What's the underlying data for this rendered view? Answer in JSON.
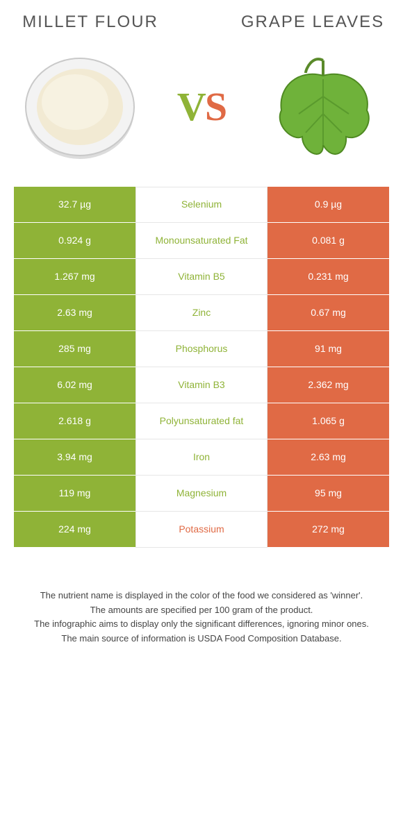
{
  "colors": {
    "left_bg": "#8fb337",
    "right_bg": "#e06a45",
    "mid_left_text": "#8fb337",
    "mid_right_text": "#e06a45",
    "page_bg": "#ffffff"
  },
  "header": {
    "left_title": "MILLET FLOUR",
    "right_title": "GRAPE LEAVES",
    "vs_v": "V",
    "vs_s": "S"
  },
  "table": {
    "rows": [
      {
        "left": "32.7 µg",
        "label": "Selenium",
        "right": "0.9 µg",
        "winner": "left"
      },
      {
        "left": "0.924 g",
        "label": "Monounsaturated Fat",
        "right": "0.081 g",
        "winner": "left"
      },
      {
        "left": "1.267 mg",
        "label": "Vitamin B5",
        "right": "0.231 mg",
        "winner": "left"
      },
      {
        "left": "2.63 mg",
        "label": "Zinc",
        "right": "0.67 mg",
        "winner": "left"
      },
      {
        "left": "285 mg",
        "label": "Phosphorus",
        "right": "91 mg",
        "winner": "left"
      },
      {
        "left": "6.02 mg",
        "label": "Vitamin B3",
        "right": "2.362 mg",
        "winner": "left"
      },
      {
        "left": "2.618 g",
        "label": "Polyunsaturated fat",
        "right": "1.065 g",
        "winner": "left"
      },
      {
        "left": "3.94 mg",
        "label": "Iron",
        "right": "2.63 mg",
        "winner": "left"
      },
      {
        "left": "119 mg",
        "label": "Magnesium",
        "right": "95 mg",
        "winner": "left"
      },
      {
        "left": "224 mg",
        "label": "Potassium",
        "right": "272 mg",
        "winner": "right"
      }
    ]
  },
  "caption": {
    "line1": "The nutrient name is displayed in the color of the food we considered as 'winner'.",
    "line2": "The amounts are specified per 100 gram of the product.",
    "line3": "The infographic aims to display only the significant differences, ignoring minor ones.",
    "line4": "The main source of information is USDA Food Composition Database."
  }
}
